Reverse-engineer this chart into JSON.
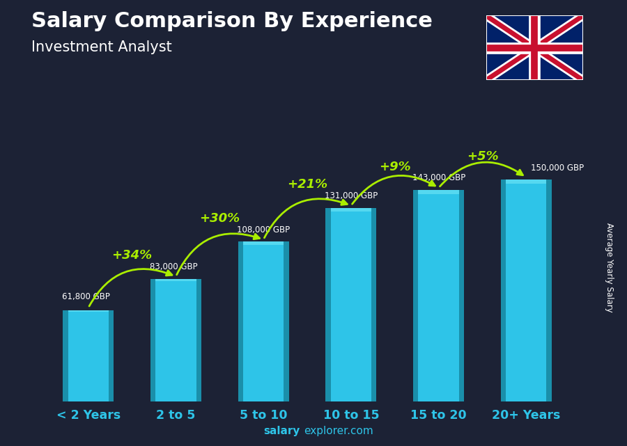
{
  "categories": [
    "< 2 Years",
    "2 to 5",
    "5 to 10",
    "10 to 15",
    "15 to 20",
    "20+ Years"
  ],
  "values": [
    61800,
    83000,
    108000,
    131000,
    143000,
    150000
  ],
  "value_labels": [
    "61,800 GBP",
    "83,000 GBP",
    "108,000 GBP",
    "131,000 GBP",
    "143,000 GBP",
    "150,000 GBP"
  ],
  "pct_changes": [
    "+34%",
    "+30%",
    "+21%",
    "+9%",
    "+5%"
  ],
  "title_line1": "Salary Comparison By Experience",
  "title_line2": "Investment Analyst",
  "ylabel": "Average Yearly Salary",
  "footer_bold": "salary",
  "footer_normal": "explorer.com",
  "bar_color_face": "#2ec4e8",
  "bar_color_left": "#1a8faa",
  "bar_color_right": "#1a8faa",
  "bar_color_top": "#55d8f0",
  "bg_color": "#1c2235",
  "text_color_white": "#ffffff",
  "text_color_green": "#aaee00",
  "arrow_color": "#aaee00",
  "ylim_max": 175000,
  "bar_width": 0.58
}
